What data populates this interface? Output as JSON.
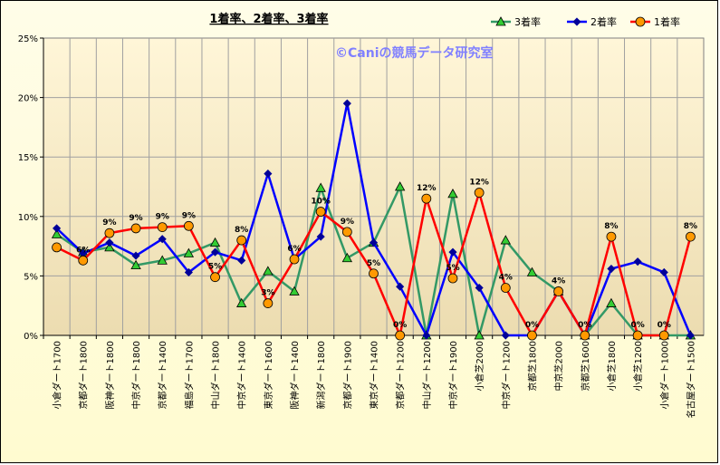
{
  "watermark": "©Caniの競馬データ研究室",
  "chart_data": {
    "type": "line",
    "title": "1着率、2着率、3着率",
    "xlabel": "",
    "ylabel": "",
    "ylim": [
      0,
      25
    ],
    "yticks": [
      "0%",
      "5%",
      "10%",
      "15%",
      "20%",
      "25%"
    ],
    "grid": true,
    "legend_position": "top-right",
    "categories": [
      "小倉ダート1700",
      "京都ダート1800",
      "阪神ダート1800",
      "中京ダート1800",
      "京都ダート1400",
      "福島ダート1700",
      "中山ダート1800",
      "中京ダート1400",
      "東京ダート1600",
      "阪神ダート1400",
      "新潟ダート1800",
      "京都ダート1900",
      "東京ダート1400",
      "京都ダート1200",
      "中山ダート1200",
      "中京ダート1900",
      "小倉芝2000",
      "中京ダート1200",
      "京都芝1800",
      "中京芝2000",
      "京都芝1600",
      "小倉芝1800",
      "小倉芝1200",
      "小倉ダート1000",
      "名古屋ダート1500"
    ],
    "series": [
      {
        "name": "3着率",
        "color": "#339966",
        "marker": "triangle",
        "values": [
          8.5,
          7.0,
          7.4,
          5.9,
          6.3,
          6.9,
          7.8,
          2.7,
          5.4,
          3.7,
          12.4,
          6.5,
          7.8,
          12.5,
          0,
          11.9,
          0,
          8.0,
          5.3,
          3.7,
          0,
          2.7,
          0,
          0,
          0
        ]
      },
      {
        "name": "2着率",
        "color": "#0000ff",
        "marker": "diamond",
        "values": [
          9.0,
          6.9,
          7.8,
          6.7,
          8.1,
          5.3,
          7.0,
          6.3,
          13.6,
          6.4,
          8.3,
          19.5,
          7.8,
          4.1,
          0,
          7.0,
          4.0,
          0,
          0,
          3.7,
          0,
          5.6,
          6.2,
          5.3,
          0
        ]
      },
      {
        "name": "1着率",
        "color": "#ff0000",
        "marker": "circle",
        "values": [
          7.4,
          6.3,
          8.6,
          9.0,
          9.1,
          9.2,
          4.9,
          8.0,
          2.7,
          6.4,
          10.4,
          8.7,
          5.2,
          0,
          11.5,
          4.8,
          12.0,
          4.0,
          0,
          3.7,
          0,
          8.3,
          0,
          0,
          8.3
        ],
        "labels": [
          "",
          "6%",
          "9%",
          "9%",
          "9%",
          "9%",
          "5%",
          "8%",
          "3%",
          "6%",
          "10%",
          "9%",
          "5%",
          "0%",
          "12%",
          "5%",
          "12%",
          "4%",
          "0%",
          "4%",
          "0%",
          "8%",
          "0%",
          "0%",
          "8%"
        ]
      }
    ]
  }
}
